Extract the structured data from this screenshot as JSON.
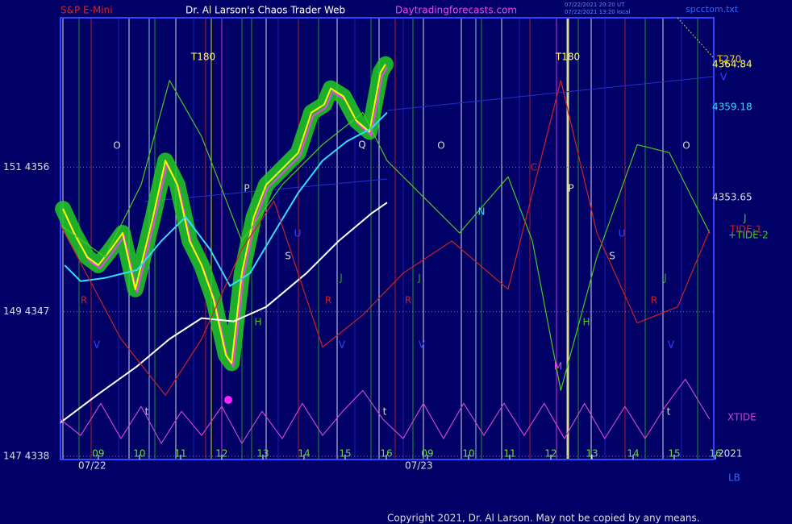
{
  "chart_data": {
    "type": "line",
    "title": "Dr. Al Larson's Chaos Trader Web",
    "symbol": "S&P E-Mini",
    "site": "Daytradingforecasts.com",
    "timestamps": [
      "07/22/2021 20:20 UT",
      "07/22/2021 13:20 local"
    ],
    "file": "spcctom.txt",
    "copyright": "Copyright 2021, Dr. Al Larson. May not be copied by any means.",
    "dates": [
      "07/22",
      "07/23"
    ],
    "year": "2021",
    "corner_label": "LB",
    "right_labels": [
      "T270",
      "4364.84",
      "4359.18",
      "4353.65",
      "J",
      "V"
    ],
    "annotations": [
      "T180",
      "T180",
      "O",
      "O",
      "O",
      "P",
      "P",
      "Q",
      "N",
      "C",
      "U",
      "U",
      "S",
      "S",
      "R",
      "R",
      "R",
      "R",
      "J",
      "J",
      "J",
      "H",
      "H",
      "V",
      "V",
      "V",
      "V",
      "M",
      "t",
      "t",
      "t"
    ],
    "xlim": [
      8.08,
      23.96
    ],
    "xticks": [
      {
        "value": 9,
        "label": "09"
      },
      10,
      11,
      12,
      13,
      14,
      15,
      16,
      {
        "value": 17,
        "label": "09"
      },
      {
        "value": 18,
        "label": "10"
      },
      {
        "value": 19,
        "label": "11"
      },
      {
        "value": 20,
        "label": "12"
      },
      {
        "value": 21,
        "label": "13"
      },
      {
        "value": 22,
        "label": "14"
      },
      {
        "value": 23,
        "label": "15"
      },
      {
        "value": 24,
        "label": "16"
      }
    ],
    "ylim": [
      4337.8,
      4365.3
    ],
    "yticks": [
      {
        "value": 4338,
        "label": "147  4338"
      },
      {
        "value": 4347,
        "label": "149  4347"
      },
      {
        "value": 4356,
        "label": "151  4356"
      }
    ],
    "grid": true,
    "series": [
      {
        "color": "#ffff00",
        "x": [
          8.14,
          8.41,
          8.73,
          9.0,
          9.31,
          9.59,
          9.9,
          10.33,
          10.63,
          10.92,
          11.22,
          11.51,
          11.8,
          12.1,
          12.24,
          12.49,
          12.78,
          13.08,
          13.47,
          13.86,
          14.18,
          14.49,
          14.65,
          14.96,
          15.27,
          15.59,
          15.86,
          15.98
        ],
        "values": [
          4353.4,
          4351.9,
          4350.4,
          4349.9,
          4350.9,
          4351.9,
          4348.4,
          4352.9,
          4356.4,
          4354.9,
          4351.4,
          4349.9,
          4347.8,
          4344.3,
          4343.8,
          4349.4,
          4352.9,
          4354.9,
          4355.9,
          4356.9,
          4359.4,
          4359.9,
          4360.9,
          4360.4,
          4358.9,
          4358.2,
          4361.9,
          4362.4
        ]
      },
      {
        "color": "#33ddff",
        "x": [
          8.18,
          8.57,
          9.16,
          9.94,
          10.53,
          11.12,
          11.71,
          12.2,
          12.69,
          13.27,
          13.86,
          14.45,
          15.04,
          15.63,
          16.02
        ],
        "values": [
          4349.9,
          4348.9,
          4349.1,
          4349.6,
          4351.4,
          4352.9,
          4350.9,
          4348.6,
          4349.4,
          4351.9,
          4354.4,
          4356.4,
          4357.6,
          4358.4,
          4359.4
        ]
      },
      {
        "color": "#ffffff",
        "x": [
          8.08,
          8.96,
          9.94,
          10.73,
          11.51,
          12.29,
          13.08,
          14.06,
          14.84,
          15.63,
          16.02
        ],
        "values": [
          4340.1,
          4341.8,
          4343.6,
          4345.3,
          4346.6,
          4346.4,
          4347.3,
          4349.4,
          4351.4,
          4353.1,
          4353.8
        ]
      },
      {
        "name": "+TIDE-2",
        "color": "#44cc22",
        "x": [
          8.08,
          9.16,
          10.04,
          10.73,
          11.51,
          12.49,
          13.47,
          14.45,
          15.43,
          16.02,
          16.8,
          17.78,
          18.96,
          19.55,
          20.24,
          21.12,
          22.1,
          22.88,
          23.86
        ],
        "values": [
          4352.4,
          4350.4,
          4354.9,
          4361.4,
          4357.9,
          4351.4,
          4354.9,
          4357.4,
          4359.4,
          4356.4,
          4354.4,
          4351.9,
          4355.4,
          4351.4,
          4342.1,
          4350.4,
          4357.4,
          4356.9,
          4351.9
        ]
      },
      {
        "name": "TIDE-1",
        "color": "#cc2222",
        "x": [
          8.08,
          9.55,
          10.63,
          11.51,
          12.49,
          13.27,
          14.45,
          15.43,
          16.41,
          17.59,
          18.96,
          20.24,
          21.12,
          22.1,
          23.08,
          23.86
        ],
        "values": [
          4352.4,
          4345.3,
          4341.8,
          4345.3,
          4350.9,
          4353.9,
          4344.8,
          4346.8,
          4349.4,
          4351.4,
          4348.4,
          4361.4,
          4351.9,
          4346.3,
          4347.3,
          4352.1
        ]
      },
      {
        "name": "XTIDE",
        "color": "#cc44cc",
        "x": [
          8.08,
          8.57,
          9.06,
          9.55,
          10.04,
          10.53,
          11.02,
          11.51,
          12.0,
          12.49,
          12.98,
          13.47,
          13.96,
          14.45,
          14.94,
          15.43,
          15.92,
          16.41,
          16.9,
          17.39,
          17.88,
          18.37,
          18.86,
          19.35,
          19.84,
          20.33,
          20.82,
          21.31,
          21.8,
          22.29,
          22.78,
          23.27,
          23.86
        ],
        "values": [
          4340.3,
          4339.3,
          4341.3,
          4339.1,
          4341.1,
          4338.8,
          4340.8,
          4339.3,
          4341.1,
          4338.8,
          4340.8,
          4339.1,
          4341.3,
          4339.3,
          4340.8,
          4342.1,
          4340.3,
          4339.1,
          4341.3,
          4339.1,
          4341.3,
          4339.3,
          4341.3,
          4339.3,
          4341.3,
          4339.1,
          4341.3,
          4339.1,
          4341.1,
          4339.1,
          4341.1,
          4342.8,
          4340.3
        ]
      }
    ]
  }
}
